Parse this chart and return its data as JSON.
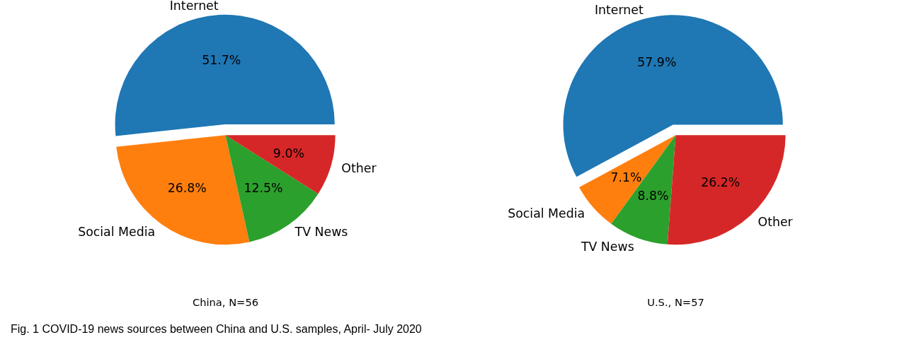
{
  "chart_data": [
    {
      "type": "pie",
      "xlabel": "China, N=56",
      "categories": [
        "Internet",
        "Social Media",
        "TV News",
        "Other"
      ],
      "values": [
        51.7,
        26.8,
        12.5,
        9.0
      ],
      "colors": [
        "#1f77b4",
        "#ff7f0e",
        "#2ca02c",
        "#d62728"
      ],
      "value_labels": [
        "51.7%",
        "26.8%",
        "12.5%",
        "9.0%"
      ]
    },
    {
      "type": "pie",
      "xlabel": "U.S., N=57",
      "categories": [
        "Internet",
        "Social Media",
        "TV News",
        "Other"
      ],
      "values": [
        57.9,
        7.1,
        8.8,
        26.2
      ],
      "colors": [
        "#1f77b4",
        "#ff7f0e",
        "#2ca02c",
        "#d62728"
      ],
      "value_labels": [
        "57.9%",
        "7.1%",
        "8.8%",
        "26.2%"
      ],
      "annotations": [
        "Fig. 1  COVID-19 news sources between China and U.S. samples, April- July 2020"
      ]
    }
  ]
}
